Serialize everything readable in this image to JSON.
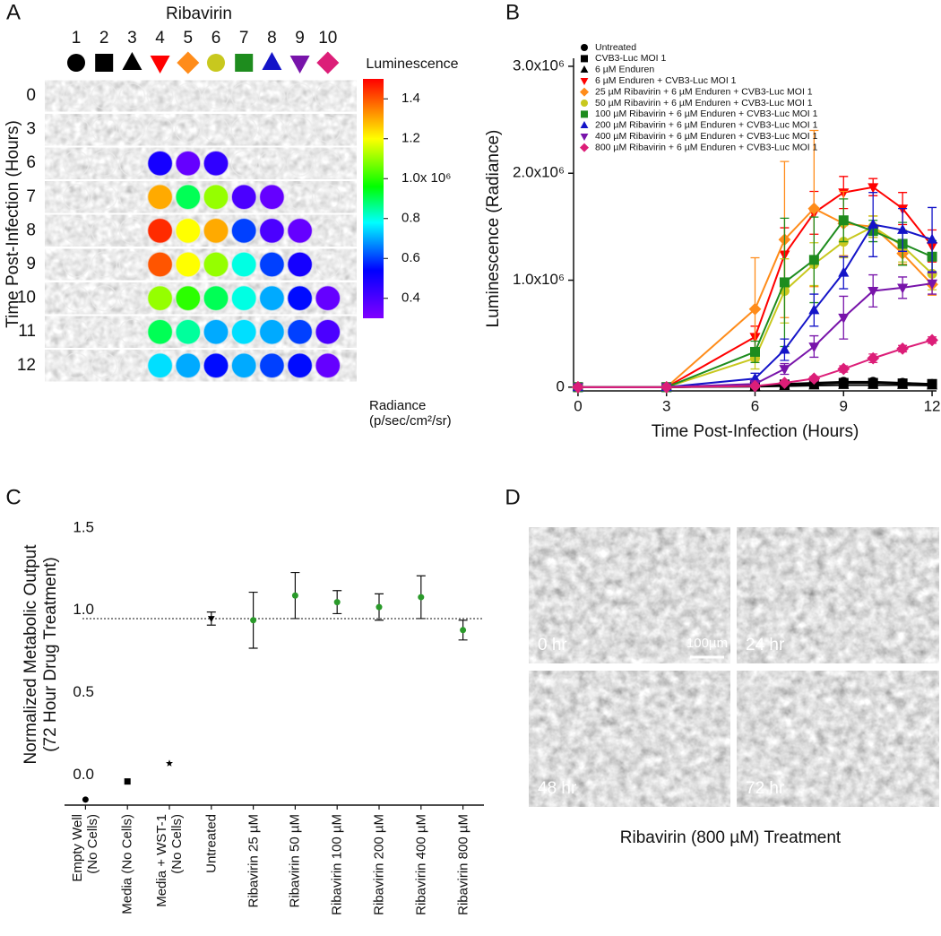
{
  "panel_labels": [
    "A",
    "B",
    "C",
    "D"
  ],
  "panel_a": {
    "title": "Ribavirin",
    "columns": [
      "1",
      "2",
      "3",
      "4",
      "5",
      "6",
      "7",
      "8",
      "9",
      "10"
    ],
    "rows": [
      "0",
      "3",
      "6",
      "7",
      "8",
      "9",
      "10",
      "11",
      "12"
    ],
    "y_label": "Time Post-Infection (Hours)",
    "colorbar_title": "Luminescence",
    "colorbar_label": "Radiance\n(p/sec/cm²/sr)",
    "colorbar_lim": [
      0.3,
      1.5
    ],
    "colorbar_ticks": [
      1.4,
      1.2,
      {
        "value": 1.0,
        "label": "1.0x 10⁶"
      },
      0.8,
      0.6,
      0.4
    ],
    "intensities": [
      [
        0,
        0,
        0,
        0,
        0,
        0,
        0,
        0,
        0,
        0
      ],
      [
        0,
        0,
        0,
        0,
        0,
        0,
        0,
        0,
        0,
        0
      ],
      [
        0,
        0,
        0,
        0.5,
        0.35,
        0.45,
        0,
        0,
        0,
        0
      ],
      [
        0,
        0,
        0,
        1.3,
        0.9,
        1.1,
        0.4,
        0.35,
        0,
        0
      ],
      [
        0,
        0,
        0,
        1.45,
        1.2,
        1.3,
        0.6,
        0.4,
        0.35,
        0
      ],
      [
        0,
        0,
        0,
        1.4,
        1.2,
        1.1,
        0.8,
        0.6,
        0.5,
        0
      ],
      [
        0,
        0,
        0,
        1.1,
        1.0,
        0.9,
        0.8,
        0.7,
        0.55,
        0.35
      ],
      [
        0,
        0,
        0,
        0.9,
        0.85,
        0.7,
        0.75,
        0.7,
        0.6,
        0.4
      ],
      [
        0,
        0,
        0,
        0.75,
        0.7,
        0.55,
        0.7,
        0.6,
        0.55,
        0.35
      ]
    ]
  },
  "chart_data": [
    {
      "type": "line",
      "x_label": "Time Post-Infection (Hours)",
      "y_label": "Luminescence (Radiance)",
      "x": [
        0,
        3,
        6,
        7,
        8,
        9,
        10,
        11,
        12
      ],
      "xlim": [
        -0.15,
        12.15
      ],
      "xticks": [
        0,
        3,
        6,
        9,
        12
      ],
      "ylim": [
        -35000,
        3075000
      ],
      "yticks": [
        0,
        {
          "value": 1000000,
          "label": "1.0x10⁶"
        },
        {
          "value": 2000000,
          "label": "2.0x10⁶"
        },
        {
          "value": 3000000,
          "label": "3.0x10⁶"
        }
      ],
      "legend": "top-left",
      "series": [
        {
          "name": "Untreated",
          "color": "#000000",
          "marker": "circle",
          "values": [
            0,
            0,
            10000,
            30000,
            40000,
            50000,
            50000,
            40000,
            30000
          ]
        },
        {
          "name": "CVB3-Luc MOI 1",
          "color": "#000000",
          "marker": "square",
          "values": [
            0,
            0,
            10000,
            25000,
            30000,
            40000,
            40000,
            35000,
            30000
          ]
        },
        {
          "name": "6 µM Enduren",
          "color": "#000000",
          "marker": "triangle",
          "values": [
            0,
            0,
            5000,
            10000,
            15000,
            20000,
            20000,
            20000,
            15000
          ]
        },
        {
          "name": "6 µM Enduren + CVB3-Luc MOI 1",
          "color": "#ff0000",
          "marker": "triangle-down",
          "values": [
            0,
            0,
            470000,
            1240000,
            1630000,
            1820000,
            1870000,
            1670000,
            1320000
          ],
          "errors": [
            0,
            0,
            100000,
            250000,
            200000,
            150000,
            80000,
            150000,
            150000
          ]
        },
        {
          "name": "25 µM Ribavirin + 6 µM Enduren + CVB3-Luc MOI 1",
          "color": "#ff8c1a",
          "marker": "diamond",
          "values": [
            0,
            0,
            730000,
            1380000,
            1670000,
            1530000,
            1500000,
            1250000,
            960000
          ],
          "errors": [
            0,
            0,
            480000,
            730000,
            730000,
            300000,
            100000,
            100000,
            100000
          ]
        },
        {
          "name": "50 µM Ribavirin + 6 µM Enduren + CVB3-Luc MOI 1",
          "color": "#c8c81e",
          "marker": "circle",
          "values": [
            0,
            0,
            270000,
            900000,
            1150000,
            1360000,
            1500000,
            1320000,
            1060000
          ],
          "errors": [
            0,
            0,
            100000,
            300000,
            200000,
            150000,
            100000,
            150000,
            150000
          ]
        },
        {
          "name": "100 µM Ribavirin + 6 µM Enduren + CVB3-Luc MOI 1",
          "color": "#1e8c1e",
          "marker": "square",
          "values": [
            0,
            0,
            330000,
            980000,
            1190000,
            1560000,
            1460000,
            1340000,
            1220000
          ],
          "errors": [
            0,
            0,
            100000,
            600000,
            400000,
            200000,
            100000,
            200000,
            150000
          ]
        },
        {
          "name": "200 µM Ribavirin + 6 µM Enduren + CVB3-Luc MOI 1",
          "color": "#1414c8",
          "marker": "triangle",
          "values": [
            0,
            0,
            80000,
            350000,
            720000,
            1070000,
            1520000,
            1470000,
            1380000
          ],
          "errors": [
            0,
            0,
            50000,
            100000,
            150000,
            150000,
            300000,
            200000,
            300000
          ]
        },
        {
          "name": "400 µM Ribavirin + 6 µM Enduren + CVB3-Luc MOI 1",
          "color": "#7814aa",
          "marker": "triangle-down",
          "values": [
            0,
            0,
            30000,
            170000,
            380000,
            650000,
            900000,
            930000,
            970000
          ],
          "errors": [
            0,
            0,
            20000,
            50000,
            100000,
            200000,
            150000,
            100000,
            100000
          ]
        },
        {
          "name": "800 µM Ribavirin + 6 µM Enduren + CVB3-Luc MOI 1",
          "color": "#dc1e78",
          "marker": "diamond",
          "values": [
            0,
            0,
            10000,
            40000,
            80000,
            170000,
            270000,
            360000,
            440000
          ],
          "errors": [
            0,
            0,
            10000,
            10000,
            20000,
            30000,
            40000,
            30000,
            30000
          ]
        }
      ]
    },
    {
      "type": "dot",
      "y_label": "Normalized Metabolic Output\n(72 Hour Drug Treatment)",
      "categories": [
        "Empty Well\n(No Cells)",
        "Media (No Cells)",
        "Media + WST-1\n(No Cells)",
        "Untreated",
        "Ribavirin 25 µM",
        "Ribavirin 50 µM",
        "Ribavirin 100 µM",
        "Ribavirin 200 µM",
        "Ribavirin 400 µM",
        "Ribavirin 800 µM"
      ],
      "values": [
        -0.15,
        -0.04,
        0.07,
        0.95,
        0.94,
        1.09,
        1.05,
        1.02,
        1.08,
        0.88
      ],
      "errors": [
        null,
        null,
        null,
        0.04,
        0.17,
        0.14,
        0.07,
        0.08,
        0.13,
        0.06
      ],
      "colors": [
        "#000000",
        "#000000",
        "#000000",
        "#000000",
        "#2a9a2a",
        "#2a9a2a",
        "#2a9a2a",
        "#2a9a2a",
        "#2a9a2a",
        "#2a9a2a"
      ],
      "markers": [
        "circle",
        "square",
        "star",
        "triangle-down",
        "circle",
        "circle",
        "circle",
        "circle",
        "circle",
        "circle"
      ],
      "ylim": [
        -0.2,
        1.5
      ],
      "yticks": [
        1.5,
        {
          "value": 1.0,
          "label": "1.0"
        },
        0.5,
        {
          "value": 0,
          "label": "0.0"
        }
      ],
      "reference_line": 0.95
    }
  ],
  "panel_d": {
    "images": [
      "0 hr",
      "24 hr",
      "48 hr",
      "72 hr"
    ],
    "scale_bar": "100µm",
    "caption": "Ribavirin (800 µM) Treatment"
  }
}
